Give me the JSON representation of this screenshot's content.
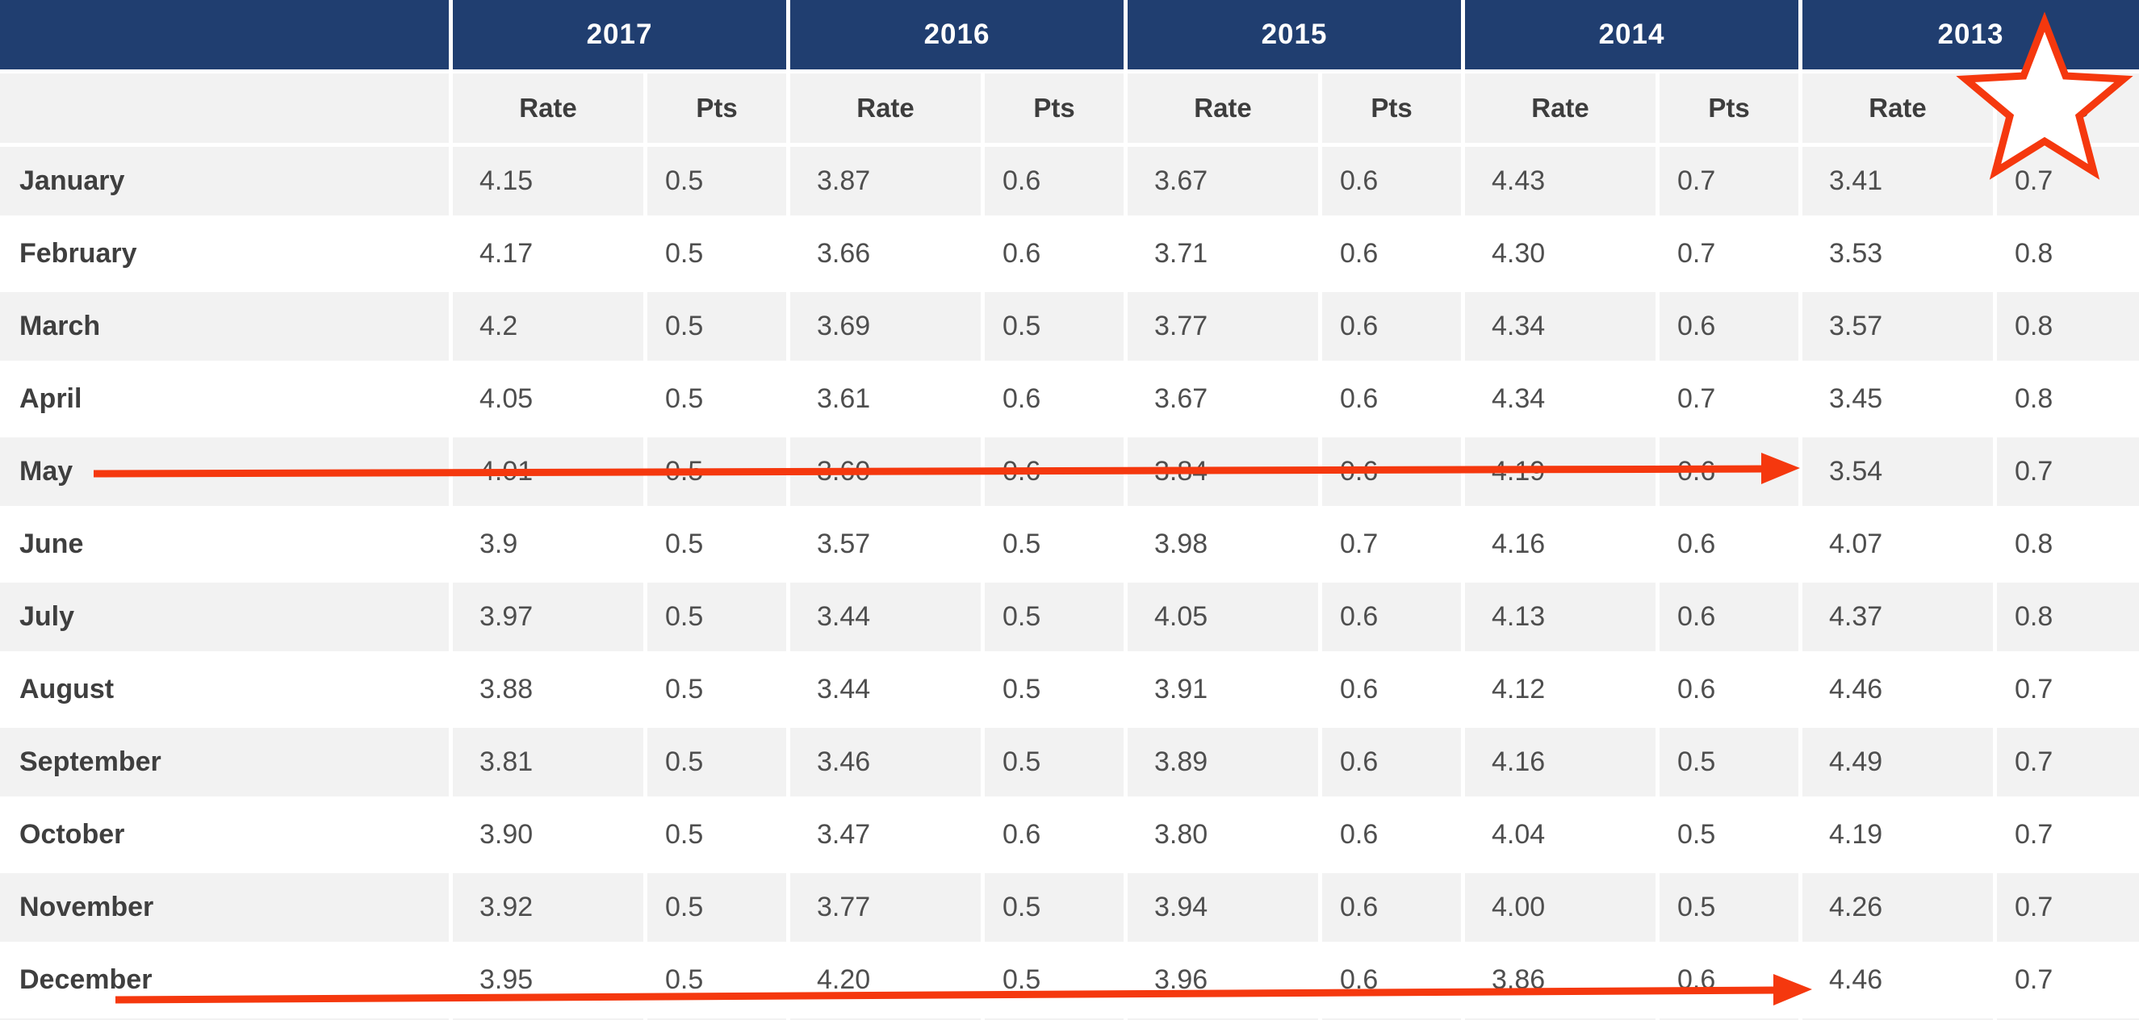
{
  "chart_data": {
    "type": "table",
    "years": [
      "2017",
      "2016",
      "2015",
      "2014",
      "2013"
    ],
    "sub_headers": {
      "rate": "Rate",
      "pts": "Pts"
    },
    "columns_per_year": [
      "Rate",
      "Pts"
    ],
    "rows": [
      {
        "month": "January",
        "values": [
          "4.15",
          "0.5",
          "3.87",
          "0.6",
          "3.67",
          "0.6",
          "4.43",
          "0.7",
          "3.41",
          "0.7"
        ]
      },
      {
        "month": "February",
        "values": [
          "4.17",
          "0.5",
          "3.66",
          "0.6",
          "3.71",
          "0.6",
          "4.30",
          "0.7",
          "3.53",
          "0.8"
        ]
      },
      {
        "month": "March",
        "values": [
          "4.2",
          "0.5",
          "3.69",
          "0.5",
          "3.77",
          "0.6",
          "4.34",
          "0.6",
          "3.57",
          "0.8"
        ]
      },
      {
        "month": "April",
        "values": [
          "4.05",
          "0.5",
          "3.61",
          "0.6",
          "3.67",
          "0.6",
          "4.34",
          "0.7",
          "3.45",
          "0.8"
        ]
      },
      {
        "month": "May",
        "values": [
          "4.01",
          "0.5",
          "3.60",
          "0.6",
          "3.84",
          "0.6",
          "4.19",
          "0.6",
          "3.54",
          "0.7"
        ]
      },
      {
        "month": "June",
        "values": [
          "3.9",
          "0.5",
          "3.57",
          "0.5",
          "3.98",
          "0.7",
          "4.16",
          "0.6",
          "4.07",
          "0.8"
        ]
      },
      {
        "month": "July",
        "values": [
          "3.97",
          "0.5",
          "3.44",
          "0.5",
          "4.05",
          "0.6",
          "4.13",
          "0.6",
          "4.37",
          "0.8"
        ]
      },
      {
        "month": "August",
        "values": [
          "3.88",
          "0.5",
          "3.44",
          "0.5",
          "3.91",
          "0.6",
          "4.12",
          "0.6",
          "4.46",
          "0.7"
        ]
      },
      {
        "month": "September",
        "values": [
          "3.81",
          "0.5",
          "3.46",
          "0.5",
          "3.89",
          "0.6",
          "4.16",
          "0.5",
          "4.49",
          "0.7"
        ]
      },
      {
        "month": "October",
        "values": [
          "3.90",
          "0.5",
          "3.47",
          "0.6",
          "3.80",
          "0.6",
          "4.04",
          "0.5",
          "4.19",
          "0.7"
        ]
      },
      {
        "month": "November",
        "values": [
          "3.92",
          "0.5",
          "3.77",
          "0.5",
          "3.94",
          "0.6",
          "4.00",
          "0.5",
          "4.26",
          "0.7"
        ]
      },
      {
        "month": "December",
        "values": [
          "3.95",
          "0.5",
          "4.20",
          "0.5",
          "3.96",
          "0.6",
          "3.86",
          "0.6",
          "4.46",
          "0.7"
        ]
      }
    ]
  },
  "annotations": {
    "arrow_may": {
      "color": "#f5380e",
      "points_to": "May 2013 Rate 3.54"
    },
    "arrow_december": {
      "color": "#f5380e",
      "points_to": "December 2013 Rate 4.46"
    },
    "star": {
      "color": "#f5380e",
      "fill": "#ffffff",
      "location": "over 2013 Pts header"
    }
  },
  "colors": {
    "header_bg": "#203e70",
    "header_text": "#ffffff",
    "stripe_bg": "#f2f2f2",
    "value_text": "#4e4e4e",
    "annotation_red": "#f5380e"
  }
}
